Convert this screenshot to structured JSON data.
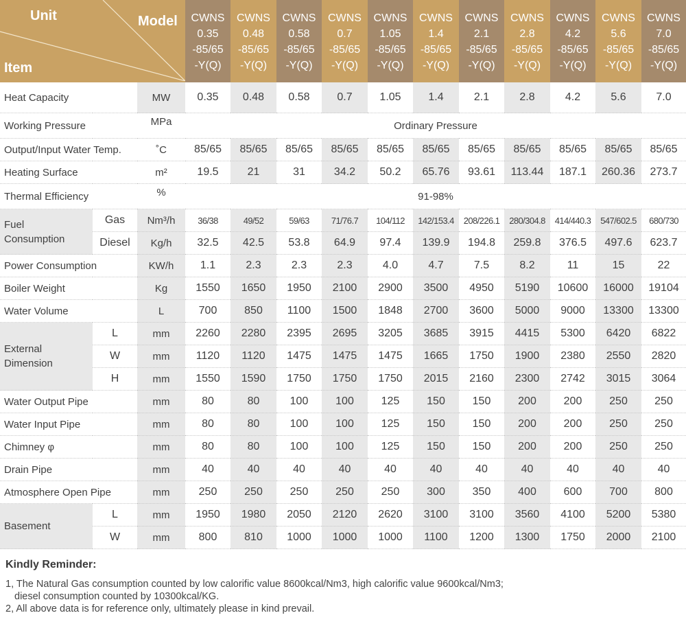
{
  "header": {
    "unit_label": "Unit",
    "model_label": "Model",
    "item_label": "Item",
    "models": [
      [
        "CWNS",
        "0.35",
        "-85/65",
        "-Y(Q)"
      ],
      [
        "CWNS",
        "0.48",
        "-85/65",
        "-Y(Q)"
      ],
      [
        "CWNS",
        "0.58",
        "-85/65",
        "-Y(Q)"
      ],
      [
        "CWNS",
        "0.7",
        "-85/65",
        "-Y(Q)"
      ],
      [
        "CWNS",
        "1.05",
        "-85/65",
        "-Y(Q)"
      ],
      [
        "CWNS",
        "1.4",
        "-85/65",
        "-Y(Q)"
      ],
      [
        "CWNS",
        "2.1",
        "-85/65",
        "-Y(Q)"
      ],
      [
        "CWNS",
        "2.8",
        "-85/65",
        "-Y(Q)"
      ],
      [
        "CWNS",
        "4.2",
        "-85/65",
        "-Y(Q)"
      ],
      [
        "CWNS",
        "5.6",
        "-85/65",
        "-Y(Q)"
      ],
      [
        "CWNS",
        "7.0",
        "-85/65",
        "-Y(Q)"
      ]
    ],
    "colors": {
      "gold": "#c9a264",
      "brown": "#a58a6c",
      "shade": "#e8e8e8"
    }
  },
  "rows": [
    {
      "item": "Heat Capacity",
      "unit": "MW",
      "values": [
        "0.35",
        "0.48",
        "0.58",
        "0.7",
        "1.05",
        "1.4",
        "2.1",
        "2.8",
        "4.2",
        "5.6",
        "7.0"
      ]
    },
    {
      "item": "Working Pressure",
      "unit": "MPa",
      "span": "Ordinary Pressure"
    },
    {
      "item": "Output/Input Water Temp.",
      "unit": "˚C",
      "values": [
        "85/65",
        "85/65",
        "85/65",
        "85/65",
        "85/65",
        "85/65",
        "85/65",
        "85/65",
        "85/65",
        "85/65",
        "85/65"
      ]
    },
    {
      "item": "Heating Surface",
      "unit": "m²",
      "values": [
        "19.5",
        "21",
        "31",
        "34.2",
        "50.2",
        "65.76",
        "93.61",
        "113.44",
        "187.1",
        "260.36",
        "273.7"
      ]
    },
    {
      "item": "Thermal Efficiency",
      "unit": "%",
      "span": "91-98%"
    },
    {
      "group": "Fuel Consumption",
      "sub": "Gas",
      "unit": "Nm³/h",
      "values": [
        "36/38",
        "49/52",
        "59/63",
        "71/76.7",
        "104/112",
        "142/153.4",
        "208/226.1",
        "280/304.8",
        "414/440.3",
        "547/602.5",
        "680/730"
      ]
    },
    {
      "group": "Fuel Consumption",
      "sub": "Diesel",
      "unit": "Kg/h",
      "values": [
        "32.5",
        "42.5",
        "53.8",
        "64.9",
        "97.4",
        "139.9",
        "194.8",
        "259.8",
        "376.5",
        "497.6",
        "623.7"
      ]
    },
    {
      "item": "Power Consumption",
      "unit": "KW/h",
      "values": [
        "1.1",
        "2.3",
        "2.3",
        "2.3",
        "4.0",
        "4.7",
        "7.5",
        "8.2",
        "11",
        "15",
        "22"
      ]
    },
    {
      "item": "Boiler Weight",
      "unit": "Kg",
      "values": [
        "1550",
        "1650",
        "1950",
        "2100",
        "2900",
        "3500",
        "4950",
        "5190",
        "10600",
        "16000",
        "19104"
      ]
    },
    {
      "item": "Water Volume",
      "unit": "L",
      "values": [
        "700",
        "850",
        "1100",
        "1500",
        "1848",
        "2700",
        "3600",
        "5000",
        "9000",
        "13300",
        "13300"
      ]
    },
    {
      "group": "External Dimension",
      "sub": "L",
      "unit": "mm",
      "values": [
        "2260",
        "2280",
        "2395",
        "2695",
        "3205",
        "3685",
        "3915",
        "4415",
        "5300",
        "6420",
        "6822"
      ]
    },
    {
      "group": "External Dimension",
      "sub": "W",
      "unit": "mm",
      "values": [
        "1120",
        "1120",
        "1475",
        "1475",
        "1475",
        "1665",
        "1750",
        "1900",
        "2380",
        "2550",
        "2820"
      ]
    },
    {
      "group": "External Dimension",
      "sub": "H",
      "unit": "mm",
      "values": [
        "1550",
        "1590",
        "1750",
        "1750",
        "1750",
        "2015",
        "2160",
        "2300",
        "2742",
        "3015",
        "3064"
      ]
    },
    {
      "item": "Water Output Pipe",
      "unit": "mm",
      "values": [
        "80",
        "80",
        "100",
        "100",
        "125",
        "150",
        "150",
        "200",
        "200",
        "250",
        "250"
      ]
    },
    {
      "item": "Water Input Pipe",
      "unit": "mm",
      "values": [
        "80",
        "80",
        "100",
        "100",
        "125",
        "150",
        "150",
        "200",
        "200",
        "250",
        "250"
      ]
    },
    {
      "item": "Chimney φ",
      "unit": "mm",
      "values": [
        "80",
        "80",
        "100",
        "100",
        "125",
        "150",
        "150",
        "200",
        "200",
        "250",
        "250"
      ]
    },
    {
      "item": "Drain Pipe",
      "unit": "mm",
      "values": [
        "40",
        "40",
        "40",
        "40",
        "40",
        "40",
        "40",
        "40",
        "40",
        "40",
        "40"
      ]
    },
    {
      "item": "Atmosphere Open Pipe",
      "unit": "mm",
      "values": [
        "250",
        "250",
        "250",
        "250",
        "250",
        "300",
        "350",
        "400",
        "600",
        "700",
        "800"
      ]
    },
    {
      "group": "Basement",
      "sub": "L",
      "unit": "mm",
      "values": [
        "1950",
        "1980",
        "2050",
        "2120",
        "2620",
        "3100",
        "3100",
        "3560",
        "4100",
        "5200",
        "5380"
      ]
    },
    {
      "group": "Basement",
      "sub": "W",
      "unit": "mm",
      "values": [
        "800",
        "810",
        "1000",
        "1000",
        "1000",
        "1100",
        "1200",
        "1300",
        "1750",
        "2000",
        "2100"
      ]
    }
  ],
  "reminder": {
    "title": "Kindly Reminder:",
    "lines": [
      "1, The Natural Gas consumption counted by low calorific value 8600kcal/Nm3, high calorific value 9600kcal/Nm3;",
      "diesel consumption counted by 10300kcal/KG.",
      "2, All above data is for reference only, ultimately please in kind prevail."
    ]
  }
}
